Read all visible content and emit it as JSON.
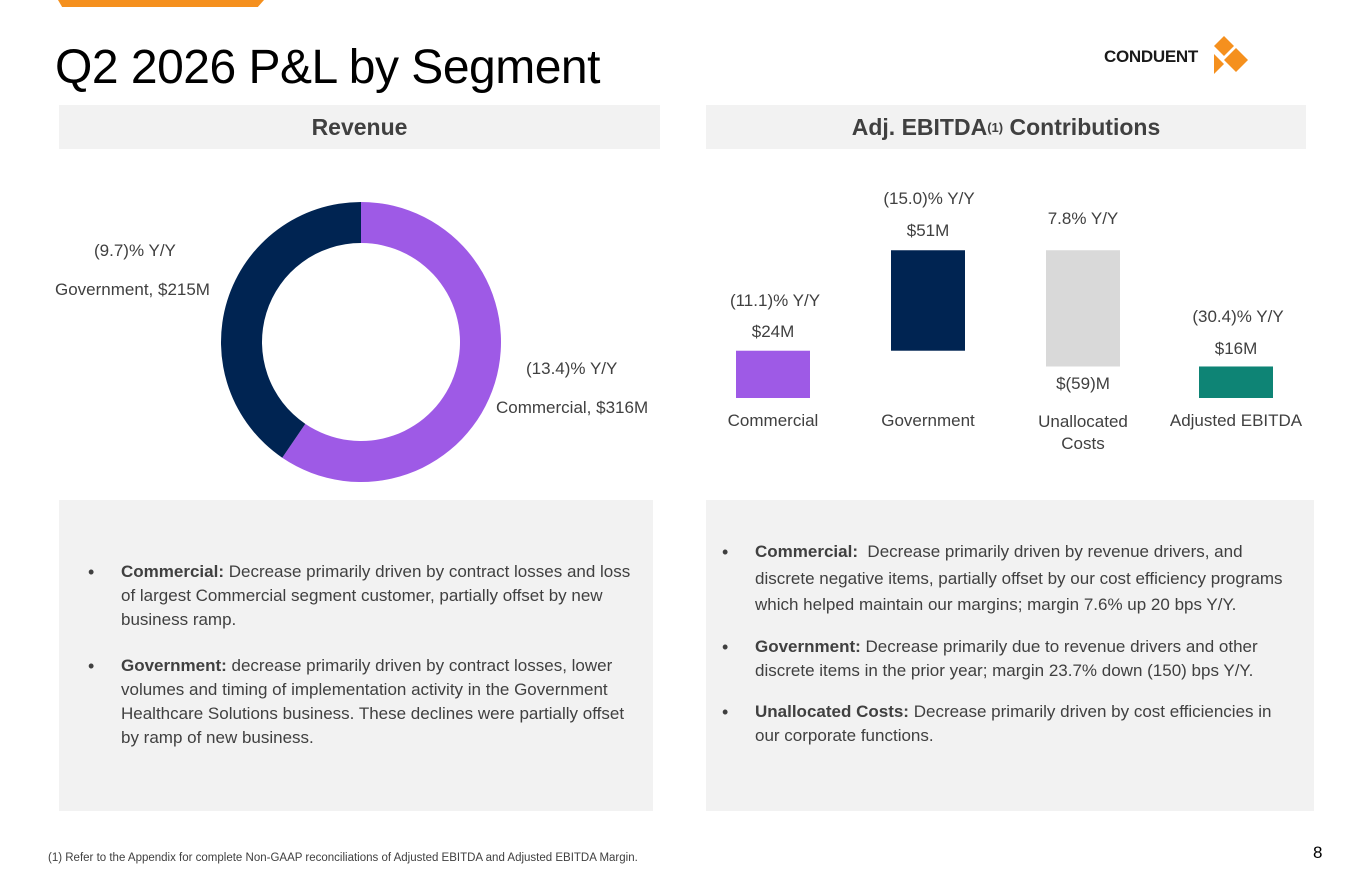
{
  "title": "Q2 2026 P&L by Segment",
  "logo": {
    "text": "CONDUENT"
  },
  "revenue_header": "Revenue",
  "ebitda_header": {
    "text": "Adj. EBITDA",
    "superscript": "(1)",
    "suffix": " Contributions"
  },
  "colors": {
    "commercial": "#9E5AE6",
    "government": "#002452",
    "unallocated": "#D9D9D9",
    "adjusted": "#0E8475",
    "accent": "#F5901E",
    "panel": "#F2F2F2"
  },
  "chart_data": [
    {
      "type": "pie",
      "segments": [
        {
          "label": "Commercial, $316M",
          "name": "Commercial",
          "value": 316,
          "yoy": "(13.4)% Y/Y",
          "color": "#9E5AE6"
        },
        {
          "label": "Government, $215M",
          "name": "Government",
          "value": 215,
          "yoy": "(9.7)% Y/Y",
          "color": "#002452"
        }
      ]
    },
    {
      "type": "bar",
      "style": "waterfall",
      "categories": [
        "Commercial",
        "Government",
        "Unallocated Costs",
        "Adjusted EBITDA"
      ],
      "values": [
        24,
        51,
        -59,
        16
      ],
      "value_labels": [
        "$24M",
        "$51M",
        "$(59)M",
        "$16M"
      ],
      "yoy_labels": [
        "(11.1)% Y/Y",
        "(15.0)% Y/Y",
        "7.8% Y/Y",
        "(30.4)% Y/Y"
      ],
      "colors": [
        "#9E5AE6",
        "#002452",
        "#D9D9D9",
        "#0E8475"
      ]
    }
  ],
  "revenue_notes": [
    {
      "bold": "Commercial:",
      "text": " Decrease primarily driven by contract losses and loss of largest Commercial segment customer, partially offset by new business ramp."
    },
    {
      "bold": "Government:",
      "text": " decrease primarily driven by contract losses, lower volumes and timing of implementation activity in the Government Healthcare Solutions business. These declines were partially offset by ramp of new business."
    }
  ],
  "ebitda_notes": [
    {
      "bold": "Commercial:",
      "text": "  Decrease primarily driven by revenue drivers, and discrete negative items, partially offset by our cost efficiency programs which helped maintain our margins; margin 7.6% up 20 bps Y/Y."
    },
    {
      "bold": "Government:",
      "text": " Decrease primarily due to revenue drivers and other discrete items in the prior year; margin 23.7% down (150) bps Y/Y."
    },
    {
      "bold": "Unallocated Costs:",
      "text": " Decrease primarily driven by cost efficiencies in our corporate functions."
    }
  ],
  "footnote": "(1) Refer to the Appendix for complete Non-GAAP reconciliations of Adjusted EBITDA and Adjusted EBITDA Margin.",
  "page_number": "8"
}
